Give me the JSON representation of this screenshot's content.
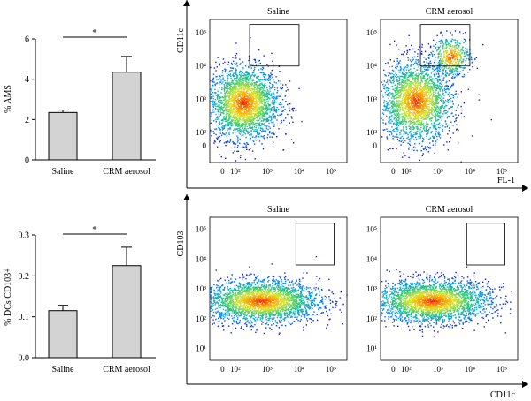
{
  "chart_data": [
    {
      "type": "bar",
      "categories": [
        "Saline",
        "CRM aerosol"
      ],
      "values": [
        2.35,
        4.35
      ],
      "errors": [
        0.12,
        0.78
      ],
      "ylabel": "% AMS",
      "ylim": [
        0,
        6
      ],
      "yticks": [
        "0",
        "2",
        "4",
        "6"
      ],
      "significance": "*",
      "bar_color": "#d3d3d3"
    },
    {
      "type": "bar",
      "categories": [
        "Saline",
        "CRM aerosol"
      ],
      "values": [
        0.115,
        0.225
      ],
      "errors": [
        0.013,
        0.045
      ],
      "ylabel": "% DCs CD103+",
      "ylim": [
        0,
        0.3
      ],
      "yticks": [
        "0.0",
        "0.1",
        "0.2",
        "0.3"
      ],
      "significance": "*",
      "bar_color": "#d3d3d3"
    },
    {
      "type": "scatter",
      "subtype": "flow-cytometry density plot",
      "ylabel": "CD11c",
      "xlabel": "FL-1",
      "xticks": [
        "0",
        "10²",
        "10³",
        "10⁴",
        "10⁵"
      ],
      "yticks": [
        "0",
        "10²",
        "10³",
        "10⁴",
        "10⁵"
      ],
      "panels": [
        {
          "title": "Saline",
          "gate": {
            "x": [
              2.45,
              4.0
            ],
            "y": [
              4.0,
              5.25
            ]
          },
          "populations": [
            {
              "mx": 2.25,
              "my": 2.9,
              "sx": 0.55,
              "sy": 0.55,
              "n": 2600
            }
          ]
        },
        {
          "title": "CRM aerosol",
          "gate": {
            "x": [
              2.45,
              4.0
            ],
            "y": [
              4.0,
              5.25
            ]
          },
          "populations": [
            {
              "mx": 2.3,
              "my": 2.95,
              "sx": 0.55,
              "sy": 0.6,
              "n": 2400
            },
            {
              "mx": 3.4,
              "my": 4.3,
              "sx": 0.3,
              "sy": 0.3,
              "n": 500
            }
          ]
        }
      ]
    },
    {
      "type": "scatter",
      "subtype": "flow-cytometry density plot",
      "ylabel": "CD103",
      "xlabel": "CD11c",
      "xticks": [
        "0",
        "10²",
        "10³",
        "10⁴",
        "10⁵"
      ],
      "yticks": [
        "10¹",
        "10²",
        "10³",
        "10⁴",
        "10⁵"
      ],
      "panels": [
        {
          "title": "Saline",
          "gate": {
            "x": [
              3.9,
              5.1
            ],
            "y": [
              3.8,
              5.2
            ]
          },
          "populations": [
            {
              "mx": 2.8,
              "my": 2.6,
              "sx": 0.9,
              "sy": 0.35,
              "n": 2800
            }
          ]
        },
        {
          "title": "CRM aerosol",
          "gate": {
            "x": [
              3.9,
              5.1
            ],
            "y": [
              3.8,
              5.2
            ]
          },
          "populations": [
            {
              "mx": 2.8,
              "my": 2.6,
              "sx": 0.9,
              "sy": 0.35,
              "n": 2800
            }
          ]
        }
      ]
    }
  ]
}
